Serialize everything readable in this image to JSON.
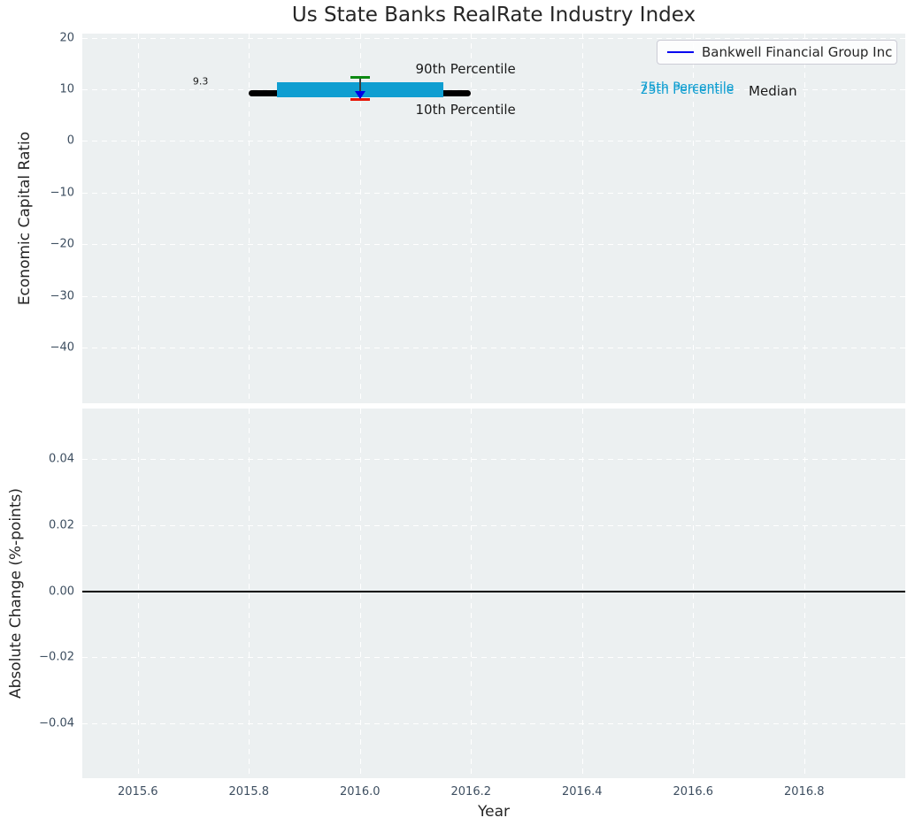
{
  "title": "Us State Banks RealRate Industry Index",
  "legend": {
    "label": "Bankwell Financial Group Inc"
  },
  "colors": {
    "figure_bg": "#ffffff",
    "axes_bg": "#ecf0f1",
    "grid": "#ffffff",
    "tick_label": "#3d4e60",
    "text": "#262626",
    "median_line": "#000000",
    "iqr_band": "#0f9ed1",
    "whisker_line": "#3c3c3c",
    "cap_90th": "#0c8a12",
    "cap_10th": "#e81505",
    "company_marker": "#0000e6",
    "legend_line": "#0000f0",
    "zero_line": "#000000"
  },
  "chart_data": [
    {
      "type": "line",
      "title": "Us State Banks RealRate Industry Index",
      "ylabel": "Economic Capital Ratio",
      "ylim": [
        -50.8,
        20.8
      ],
      "grid": true,
      "legend_position": "upper right",
      "legend_entries": [
        {
          "label": "Bankwell Financial Group Inc",
          "color_key": "legend_line"
        }
      ],
      "yticks": [
        {
          "value": 20,
          "label": "20"
        },
        {
          "value": 10,
          "label": "10"
        },
        {
          "value": 0,
          "label": "0"
        },
        {
          "value": -10,
          "label": "−10"
        },
        {
          "value": -20,
          "label": "−20"
        },
        {
          "value": -30,
          "label": "−30"
        },
        {
          "value": -40,
          "label": "−40"
        }
      ],
      "series": [
        {
          "name": "Industry median",
          "type": "thick-line",
          "x": [
            2015.8,
            2016.2
          ],
          "y": [
            9.3,
            9.3
          ],
          "linewidth": 7,
          "color_key": "median_line"
        },
        {
          "name": "Industry 25th-75th percentile band",
          "type": "band",
          "x": [
            2015.85,
            2016.15
          ],
          "y_low": 8.4,
          "y_high": 11.3,
          "color_key": "iqr_band"
        },
        {
          "name": "Industry 10th-90th percentile whisker",
          "type": "errorbar",
          "x": 2016.0,
          "y_low": 8.0,
          "y_high": 12.3
        },
        {
          "name": "Bankwell Financial Group Inc",
          "type": "scatter",
          "marker": "triangle-down",
          "x": [
            2016.0
          ],
          "y": [
            9.0
          ],
          "color_key": "company_marker"
        }
      ],
      "annotations": [
        {
          "text": "9.3",
          "x": 2015.713,
          "y": 11.6,
          "color": "#1a1a1a",
          "size": 11,
          "anchor": "middle"
        },
        {
          "text": "90th Percentile",
          "x": 2016.1,
          "y": 13.9,
          "color": "#1a1a1a",
          "size": 15,
          "anchor": "start"
        },
        {
          "text": "10th Percentile",
          "x": 2016.1,
          "y": 6.1,
          "color": "#1a1a1a",
          "size": 15,
          "anchor": "start"
        },
        {
          "text": "75th Percentile",
          "x": 2016.505,
          "y": 10.3,
          "color": "#0f9ed1",
          "size": 14,
          "anchor": "start"
        },
        {
          "text": "25th Percentile",
          "x": 2016.505,
          "y": 9.9,
          "color": "#0f9ed1",
          "size": 14,
          "anchor": "start"
        },
        {
          "text": "Median",
          "x": 2016.7,
          "y": 9.7,
          "color": "#1a1a1a",
          "size": 15,
          "anchor": "start"
        }
      ]
    },
    {
      "type": "line",
      "ylabel": "Absolute Change (%-points)",
      "xlabel": "Year",
      "xlim": [
        2015.5,
        2016.982
      ],
      "ylim": [
        -0.0565,
        0.0552
      ],
      "grid": true,
      "yticks": [
        {
          "value": 0.04,
          "label": "0.04"
        },
        {
          "value": 0.02,
          "label": "0.02"
        },
        {
          "value": 0,
          "label": "0.00"
        },
        {
          "value": -0.02,
          "label": "−0.02"
        },
        {
          "value": -0.04,
          "label": "−0.04"
        }
      ],
      "xticks": [
        {
          "value": 2015.6,
          "label": "2015.6"
        },
        {
          "value": 2015.8,
          "label": "2015.8"
        },
        {
          "value": 2016.0,
          "label": "2016.0"
        },
        {
          "value": 2016.2,
          "label": "2016.2"
        },
        {
          "value": 2016.4,
          "label": "2016.4"
        },
        {
          "value": 2016.6,
          "label": "2016.6"
        },
        {
          "value": 2016.8,
          "label": "2016.8"
        }
      ],
      "series": [
        {
          "name": "Zero reference line",
          "type": "hline",
          "y": 0,
          "linewidth": 2,
          "color_key": "zero_line"
        }
      ]
    }
  ]
}
